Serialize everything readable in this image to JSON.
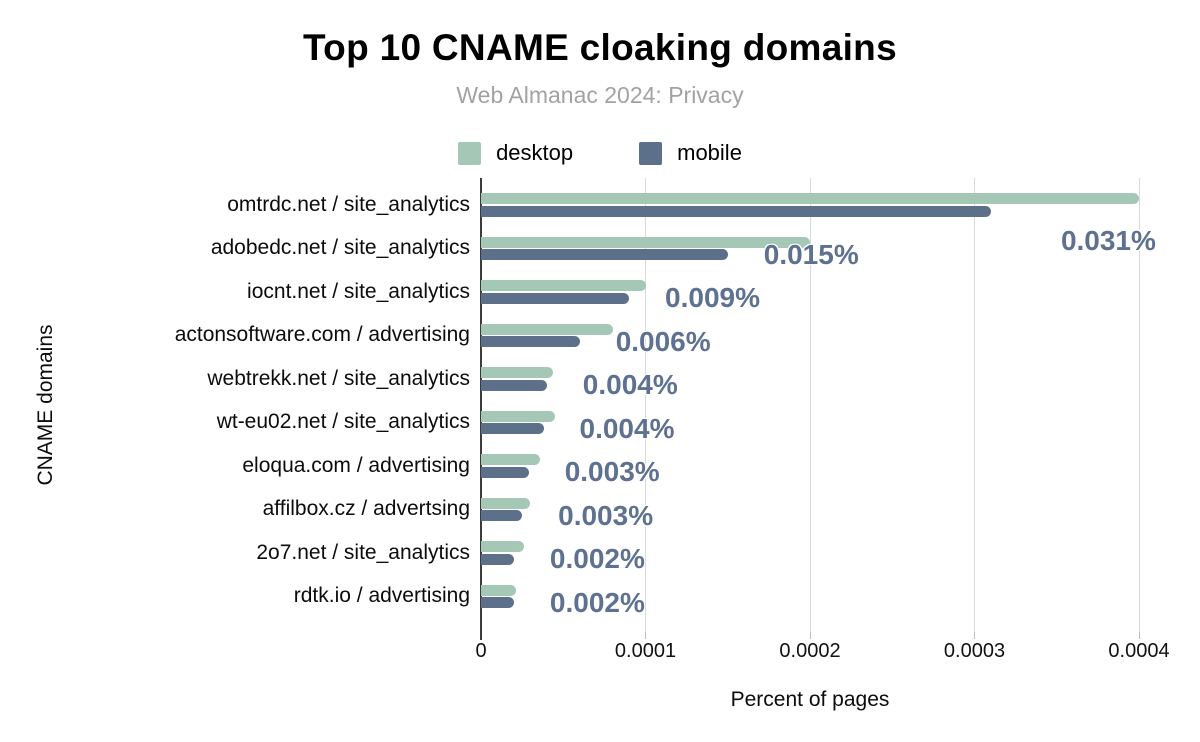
{
  "header": {
    "title": "Top 10 CNAME cloaking domains",
    "subtitle": "Web Almanac 2024: Privacy"
  },
  "legend": [
    {
      "label": "desktop",
      "color": "#a5c8b6"
    },
    {
      "label": "mobile",
      "color": "#5d7089"
    }
  ],
  "axes": {
    "x_title": "Percent of pages",
    "y_title": "CNAME domains",
    "x_ticks": [
      "0",
      "0.0001",
      "0.0002",
      "0.0003",
      "0.0004"
    ]
  },
  "chart_data": {
    "type": "bar",
    "orientation": "horizontal",
    "title": "Top 10 CNAME cloaking domains",
    "subtitle": "Web Almanac 2024: Privacy",
    "xlabel": "Percent of pages",
    "ylabel": "CNAME domains",
    "xlim": [
      0,
      0.0004
    ],
    "x_tick_values": [
      0,
      0.0001,
      0.0002,
      0.0003,
      0.0004
    ],
    "grid": true,
    "legend_position": "top",
    "categories": [
      "omtrdc.net / site_analytics",
      "adobedc.net / site_analytics",
      "iocnt.net / site_analytics",
      "actonsoftware.com / advertising",
      "webtrekk.net / site_analytics",
      "wt-eu02.net / site_analytics",
      "eloqua.com / advertising",
      "affilbox.cz / advertsing",
      "2o7.net / site_analytics",
      "rdtk.io / advertising"
    ],
    "series": [
      {
        "name": "desktop",
        "color": "#a5c8b6",
        "values": [
          0.0004,
          0.0002,
          0.0001,
          8e-05,
          4.4e-05,
          4.5e-05,
          3.6e-05,
          3e-05,
          2.6e-05,
          2.1e-05
        ]
      },
      {
        "name": "mobile",
        "color": "#5d7089",
        "values": [
          0.00031,
          0.00015,
          9e-05,
          6e-05,
          4e-05,
          3.8e-05,
          2.9e-05,
          2.5e-05,
          2e-05,
          2e-05
        ]
      }
    ],
    "annotations": {
      "series": "mobile",
      "color": "#5e7191",
      "labels": [
        "0.031%",
        "0.015%",
        "0.009%",
        "0.006%",
        "0.004%",
        "0.004%",
        "0.003%",
        "0.003%",
        "0.002%",
        "0.002%"
      ]
    }
  }
}
